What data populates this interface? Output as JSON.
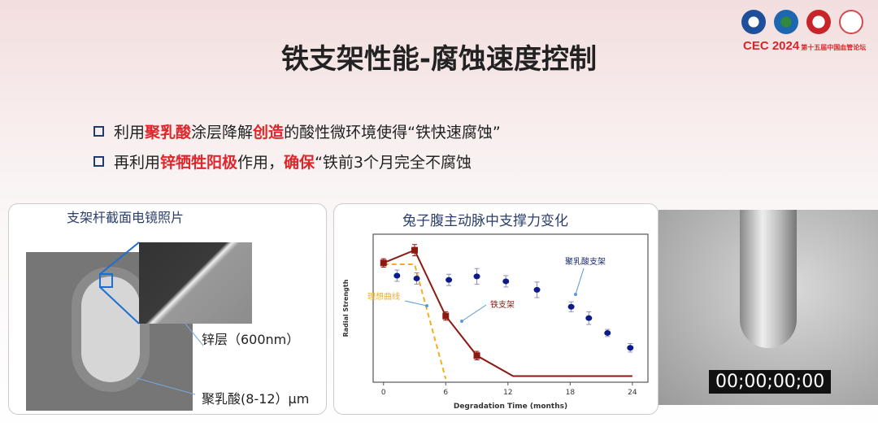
{
  "header": {
    "logo_text": "CEC 2024",
    "logo_sub": "第十五届中国血管论坛"
  },
  "title": "铁支架性能-腐蚀速度控制",
  "bullets": [
    {
      "parts": [
        "利用",
        "聚乳酸",
        "涂层降解",
        "创造",
        "的酸性微环境使得“铁快速腐蚀”"
      ]
    },
    {
      "parts": [
        "再利用",
        "锌牺牲阳极",
        "作用，",
        "确保",
        "“铁前3个月完全不腐蚀"
      ]
    }
  ],
  "left_panel": {
    "title": "支架杆截面电镜照片",
    "label_zinc": "锌层（600nm）",
    "label_pla": "聚乳酸(8-12）μm"
  },
  "video": {
    "timecode": "00;00;00;00"
  },
  "chart_data": {
    "type": "scatter",
    "title": "兔子腹主动脉中支撑力变化",
    "xlabel": "Degradation Time  (months)",
    "ylabel": "Radial Strength",
    "xlim": [
      -1,
      25.5
    ],
    "ylim": [
      0,
      100
    ],
    "xticks": [
      0,
      6,
      12,
      18,
      24
    ],
    "series": [
      {
        "name": "铁支架",
        "color": "#8b1a12",
        "marker": "square",
        "line": true,
        "points": [
          [
            0,
            82
          ],
          [
            3,
            91
          ],
          [
            6,
            44.5
          ],
          [
            9,
            16.5
          ]
        ],
        "err": [
          3,
          4,
          3,
          3
        ],
        "line_points": [
          [
            0,
            82
          ],
          [
            3,
            91
          ],
          [
            6,
            44.5
          ],
          [
            9,
            16.5
          ],
          [
            12.5,
            2
          ],
          [
            24,
            2
          ]
        ]
      },
      {
        "name": "理想曲线",
        "color": "#f2b01e",
        "dashed": true,
        "points": [
          [
            0,
            81
          ],
          [
            3,
            81
          ],
          [
            6,
            0
          ]
        ]
      },
      {
        "name": "聚乳酸支架",
        "color": "#0d1a8a",
        "marker": "circle",
        "points": [
          [
            1.3,
            73
          ],
          [
            3.2,
            71
          ],
          [
            6.3,
            70
          ],
          [
            9,
            72.5
          ],
          [
            11.8,
            69
          ],
          [
            14.8,
            63
          ],
          [
            18.1,
            51
          ],
          [
            19.8,
            43
          ],
          [
            21.6,
            32.5
          ],
          [
            23.8,
            22
          ]
        ],
        "err": [
          4,
          4,
          4,
          5.5,
          4,
          5.5,
          3.5,
          4.5,
          2.5,
          3
        ]
      }
    ]
  }
}
